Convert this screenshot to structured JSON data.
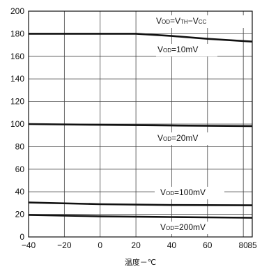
{
  "chart_data": {
    "type": "line",
    "title": "",
    "xlabel": "温度－℃",
    "ylabel": "",
    "xlim": [
      -40,
      85
    ],
    "ylim": [
      0,
      200
    ],
    "grid": true,
    "x_ticks": [
      -40,
      -20,
      0,
      20,
      40,
      60,
      80,
      85
    ],
    "x_tick_labels": [
      "−40",
      "−20",
      "0",
      "20",
      "40",
      "60",
      "80",
      "85"
    ],
    "y_ticks": [
      0,
      20,
      40,
      60,
      80,
      100,
      120,
      140,
      160,
      180,
      200
    ],
    "series": [
      {
        "name": "V_OD=10mV",
        "points": [
          [
            -40,
            180
          ],
          [
            0,
            180
          ],
          [
            20,
            180
          ],
          [
            40,
            178
          ],
          [
            60,
            175.5
          ],
          [
            85,
            173
          ]
        ]
      },
      {
        "name": "V_OD=20mV",
        "points": [
          [
            -40,
            100
          ],
          [
            0,
            99.3
          ],
          [
            40,
            98.7
          ],
          [
            85,
            98.2
          ]
        ]
      },
      {
        "name": "V_OD=100mV",
        "points": [
          [
            -40,
            30.5
          ],
          [
            0,
            29
          ],
          [
            40,
            28.3
          ],
          [
            85,
            28
          ]
        ]
      },
      {
        "name": "V_OD=200mV",
        "points": [
          [
            -40,
            19.5
          ],
          [
            0,
            18.3
          ],
          [
            40,
            17.6
          ],
          [
            85,
            17
          ]
        ]
      }
    ],
    "annotations": [
      {
        "id": "vth-vcc",
        "parts": [
          [
            "V",
            ""
          ],
          [
            "OD",
            "sub"
          ],
          [
            "=V",
            ""
          ],
          [
            "TH",
            "sub"
          ],
          [
            "−V",
            ""
          ],
          [
            "CC",
            "sub"
          ]
        ]
      },
      {
        "id": "od10",
        "parts": [
          [
            "V",
            ""
          ],
          [
            "OD",
            "sub"
          ],
          [
            "=10mV",
            ""
          ]
        ]
      },
      {
        "id": "od20",
        "parts": [
          [
            "V",
            ""
          ],
          [
            "OD",
            "sub"
          ],
          [
            "=20mV",
            ""
          ]
        ]
      },
      {
        "id": "od100",
        "parts": [
          [
            "V",
            ""
          ],
          [
            "OD",
            "sub"
          ],
          [
            "=100mV",
            ""
          ]
        ]
      },
      {
        "id": "od200",
        "parts": [
          [
            "V",
            ""
          ],
          [
            "OD",
            "sub"
          ],
          [
            "=200mV",
            ""
          ]
        ]
      }
    ]
  }
}
